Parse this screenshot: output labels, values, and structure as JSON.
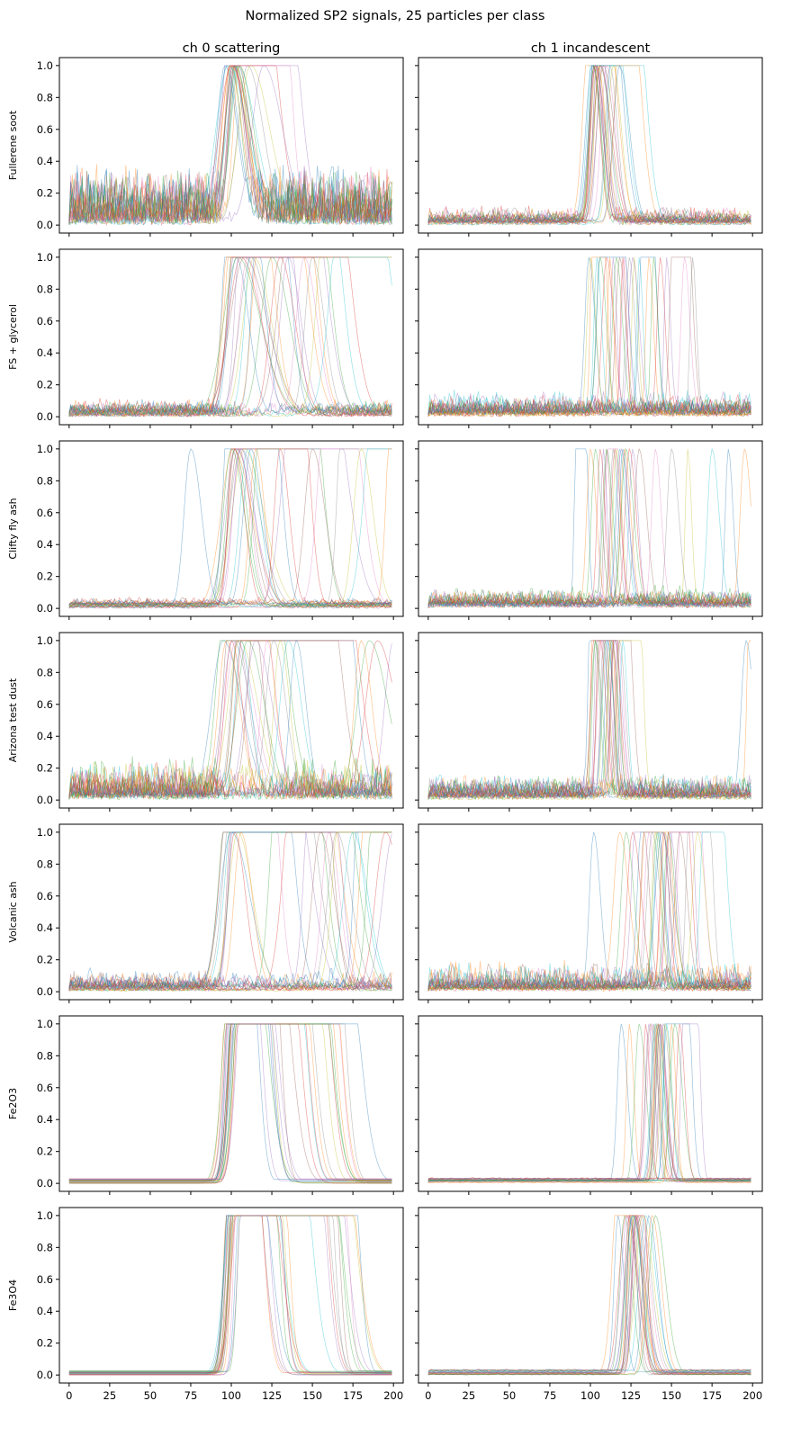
{
  "figure_title": "Normalized SP2 signals, 25 particles per class",
  "chart_data": {
    "type": "line",
    "title": "Normalized SP2 signals, 25 particles per class",
    "columns": [
      "ch 0 scattering",
      "ch 1 incandescent"
    ],
    "rows": [
      "Fullerene soot",
      "FS + glycerol",
      "Clifty fly ash",
      "Arizona test dust",
      "Volcanic ash",
      "Fe2O3",
      "Fe3O4"
    ],
    "particles_per_class": 25,
    "xlim": [
      -6,
      206
    ],
    "ylim": [
      -0.05,
      1.05
    ],
    "x_ticks": [
      0,
      25,
      50,
      75,
      100,
      125,
      150,
      175,
      200
    ],
    "y_ticks": [
      0.0,
      0.2,
      0.4,
      0.6,
      0.8,
      1.0
    ],
    "x_tick_labels": [
      "0",
      "25",
      "50",
      "75",
      "100",
      "125",
      "150",
      "175",
      "200"
    ],
    "y_tick_labels": [
      "0.0",
      "0.2",
      "0.4",
      "0.6",
      "0.8",
      "1.0"
    ],
    "sample_range": [
      0,
      199
    ],
    "series_colors": [
      "#1f77b4",
      "#ff7f0e",
      "#2ca02c",
      "#d62728",
      "#9467bd",
      "#8c564b",
      "#e377c2",
      "#7f7f7f",
      "#bcbd22",
      "#17becf"
    ],
    "panels": [
      {
        "row": "Fullerene soot",
        "channel": "ch 0 scattering",
        "peak_positions": [
          97,
          99,
          100,
          101,
          101,
          102,
          102,
          103,
          103,
          104,
          104,
          105,
          105,
          100,
          101,
          102,
          103,
          110,
          112,
          98,
          96,
          100,
          102,
          104,
          120
        ],
        "peak_width": 5,
        "noise_level": 0.3,
        "saturation_fraction": 0.15
      },
      {
        "row": "Fullerene soot",
        "channel": "ch 1 incandescent",
        "peak_positions": [
          101,
          101,
          102,
          102,
          103,
          103,
          103,
          104,
          104,
          104,
          105,
          105,
          106,
          106,
          107,
          108,
          110,
          112,
          114,
          116,
          118,
          120,
          102,
          103,
          104
        ],
        "peak_width": 3,
        "noise_level": 0.08,
        "saturation_fraction": 0.3
      },
      {
        "row": "FS + glycerol",
        "channel": "ch 0 scattering",
        "peak_positions": [
          103,
          104,
          105,
          106,
          107,
          108,
          110,
          112,
          114,
          116,
          118,
          120,
          125,
          130,
          135,
          140,
          145,
          150,
          160,
          170,
          100,
          102,
          104,
          106,
          108
        ],
        "peak_width": 6,
        "noise_level": 0.08,
        "saturation_fraction": 0.45
      },
      {
        "row": "FS + glycerol",
        "channel": "ch 1 incandescent",
        "peak_positions": [
          99,
          102,
          106,
          110,
          114,
          118,
          121,
          124,
          127,
          130,
          133,
          136,
          139,
          143,
          147,
          152,
          158,
          163,
          100,
          104,
          108,
          112,
          116,
          120,
          126
        ],
        "peak_width": 2,
        "noise_level": 0.12,
        "saturation_fraction": 0.15
      },
      {
        "row": "Clifty fly ash",
        "channel": "ch 0 scattering",
        "peak_positions": [
          100,
          101,
          102,
          102,
          103,
          104,
          105,
          106,
          108,
          110,
          112,
          115,
          120,
          130,
          140,
          150,
          160,
          170,
          180,
          190,
          75,
          200,
          100,
          103,
          106
        ],
        "peak_width": 5,
        "noise_level": 0.04,
        "saturation_fraction": 0.3
      },
      {
        "row": "Clifty fly ash",
        "channel": "ch 1 incandescent",
        "peak_positions": [
          92,
          100,
          103,
          106,
          108,
          110,
          112,
          114,
          116,
          118,
          120,
          121,
          122,
          124,
          126,
          130,
          140,
          150,
          160,
          175,
          185,
          195,
          110,
          115,
          119
        ],
        "peak_width": 2,
        "noise_level": 0.1,
        "saturation_fraction": 0.1
      },
      {
        "row": "Arizona test dust",
        "channel": "ch 0 scattering",
        "peak_positions": [
          95,
          97,
          99,
          100,
          101,
          102,
          103,
          104,
          105,
          106,
          107,
          108,
          110,
          112,
          115,
          118,
          122,
          126,
          130,
          135,
          140,
          180,
          185,
          190,
          200
        ],
        "peak_width": 5,
        "noise_level": 0.2,
        "saturation_fraction": 0.35
      },
      {
        "row": "Arizona test dust",
        "channel": "ch 1 incandescent",
        "peak_positions": [
          101,
          102,
          103,
          104,
          105,
          106,
          107,
          108,
          109,
          110,
          111,
          112,
          113,
          114,
          115,
          116,
          117,
          118,
          119,
          120,
          196,
          199,
          103,
          106,
          109
        ],
        "peak_width": 2,
        "noise_level": 0.12,
        "saturation_fraction": 0.2
      },
      {
        "row": "Volcanic ash",
        "channel": "ch 0 scattering",
        "peak_positions": [
          100,
          101,
          101,
          102,
          102,
          103,
          103,
          104,
          104,
          105,
          105,
          106,
          130,
          140,
          150,
          155,
          160,
          165,
          170,
          175,
          180,
          185,
          190,
          195,
          200
        ],
        "peak_width": 5,
        "noise_level": 0.1,
        "saturation_fraction": 0.6
      },
      {
        "row": "Volcanic ash",
        "channel": "ch 1 incandescent",
        "peak_positions": [
          102,
          118,
          122,
          126,
          130,
          133,
          136,
          138,
          140,
          142,
          144,
          146,
          148,
          150,
          152,
          155,
          158,
          162,
          166,
          172,
          134,
          137,
          141,
          145,
          149
        ],
        "peak_width": 3,
        "noise_level": 0.15,
        "saturation_fraction": 0.35
      },
      {
        "row": "Fe2O3",
        "channel": "ch 0 scattering",
        "peak_positions": [
          100,
          100,
          101,
          101,
          101,
          102,
          102,
          102,
          103,
          103,
          103,
          104,
          104,
          104,
          105,
          105,
          105,
          106,
          106,
          106,
          107,
          107,
          108,
          108,
          109
        ],
        "peak_width": 4,
        "noise_level": 0.0,
        "saturation_fraction": 1.0
      },
      {
        "row": "Fe2O3",
        "channel": "ch 1 incandescent",
        "peak_positions": [
          119,
          124,
          130,
          134,
          136,
          137,
          138,
          139,
          140,
          140,
          141,
          141,
          142,
          142,
          143,
          143,
          144,
          145,
          146,
          147,
          148,
          150,
          152,
          155,
          158
        ],
        "peak_width": 2,
        "noise_level": 0.01,
        "saturation_fraction": 0.1
      },
      {
        "row": "Fe3O4",
        "channel": "ch 0 scattering",
        "peak_positions": [
          100,
          100,
          101,
          101,
          101,
          102,
          102,
          102,
          103,
          103,
          103,
          104,
          104,
          104,
          105,
          105,
          105,
          106,
          106,
          106,
          107,
          107,
          108,
          108,
          109
        ],
        "peak_width": 4,
        "noise_level": 0.0,
        "saturation_fraction": 1.0
      },
      {
        "row": "Fe3O4",
        "channel": "ch 1 incandescent",
        "peak_positions": [
          117,
          119,
          121,
          122,
          123,
          124,
          124,
          125,
          125,
          126,
          126,
          127,
          127,
          128,
          128,
          129,
          130,
          131,
          132,
          134,
          136,
          138,
          140,
          126,
          128
        ],
        "peak_width": 3,
        "noise_level": 0.01,
        "saturation_fraction": 0.1
      }
    ]
  }
}
